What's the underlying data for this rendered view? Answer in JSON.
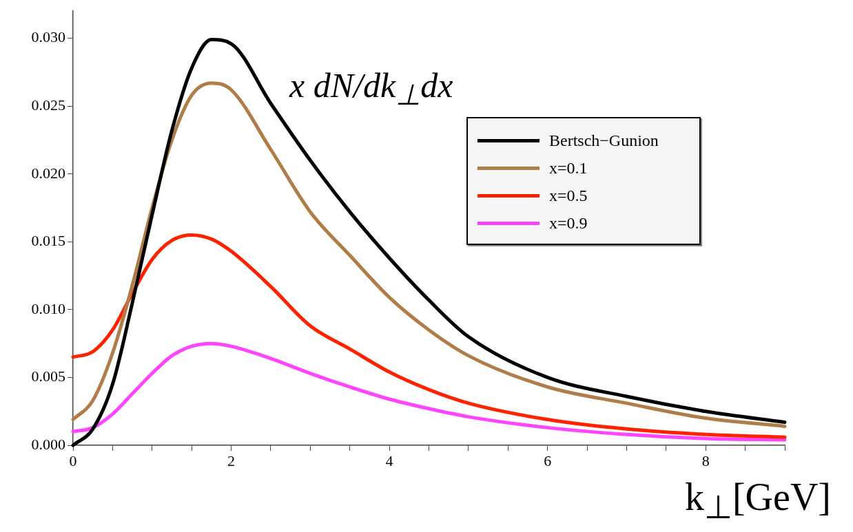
{
  "chart_data": {
    "type": "line",
    "title": "x dN/dk$_{⊥}$dx",
    "xlabel": "k$_{⊥}$[GeV]",
    "x": [
      0,
      0.25,
      0.5,
      0.75,
      1,
      1.25,
      1.5,
      1.75,
      2,
      2.5,
      3,
      3.5,
      4,
      4.5,
      5,
      6,
      7,
      8,
      9
    ],
    "series": [
      {
        "name": "Bertsch−Gunion",
        "color": "#000000",
        "values": [
          0,
          0.0012,
          0.0045,
          0.0105,
          0.017,
          0.0232,
          0.0278,
          0.0299,
          0.0296,
          0.0252,
          0.021,
          0.0172,
          0.0138,
          0.0107,
          0.008,
          0.005,
          0.0036,
          0.0025,
          0.0017
        ]
      },
      {
        "name": "x=0.1",
        "color": "#b07d48",
        "values": [
          0.0019,
          0.0033,
          0.0068,
          0.0118,
          0.0175,
          0.0225,
          0.0258,
          0.0267,
          0.0262,
          0.0218,
          0.0172,
          0.014,
          0.0109,
          0.0085,
          0.0066,
          0.0043,
          0.0031,
          0.002,
          0.0014
        ]
      },
      {
        "name": "x=0.5",
        "color": "#ff2200",
        "values": [
          0.0065,
          0.0069,
          0.0085,
          0.0112,
          0.0137,
          0.0151,
          0.0155,
          0.0152,
          0.0143,
          0.0117,
          0.0088,
          0.0071,
          0.0054,
          0.0041,
          0.0031,
          0.0019,
          0.0012,
          0.0008,
          0.0006
        ]
      },
      {
        "name": "x=0.9",
        "color": "#ff44ff",
        "values": [
          0.001,
          0.0013,
          0.0023,
          0.0038,
          0.0053,
          0.0066,
          0.0073,
          0.0075,
          0.0073,
          0.0064,
          0.0053,
          0.0043,
          0.0034,
          0.0027,
          0.0021,
          0.0013,
          0.0008,
          0.0005,
          0.0004
        ]
      }
    ],
    "xlim": [
      0,
      9
    ],
    "ylim": [
      0,
      0.032
    ],
    "xticks": [
      0,
      {
        "value": 0.5,
        "label": null
      },
      {
        "value": 1,
        "label": null
      },
      {
        "value": 1.5,
        "label": null
      },
      2,
      {
        "value": 2.5,
        "label": null
      },
      {
        "value": 3,
        "label": null
      },
      {
        "value": 3.5,
        "label": null
      },
      4,
      {
        "value": 4.5,
        "label": null
      },
      {
        "value": 5,
        "label": null
      },
      {
        "value": 5.5,
        "label": null
      },
      6,
      {
        "value": 6.5,
        "label": null
      },
      {
        "value": 7,
        "label": null
      },
      {
        "value": 7.5,
        "label": null
      },
      8,
      {
        "value": 8.5,
        "label": null
      },
      {
        "value": 9,
        "label": null
      }
    ],
    "yticks": [
      {
        "value": 0,
        "label": "0.000"
      },
      {
        "value": 0.005,
        "label": "0.005"
      },
      {
        "value": 0.01,
        "label": "0.010"
      },
      {
        "value": 0.015,
        "label": "0.015"
      },
      {
        "value": 0.02,
        "label": "0.020"
      },
      {
        "value": 0.025,
        "label": "0.025"
      },
      {
        "value": 0.03,
        "label": "0.030"
      }
    ],
    "grid": false,
    "legend": "top right",
    "marker": "none",
    "line_style": "solid"
  }
}
